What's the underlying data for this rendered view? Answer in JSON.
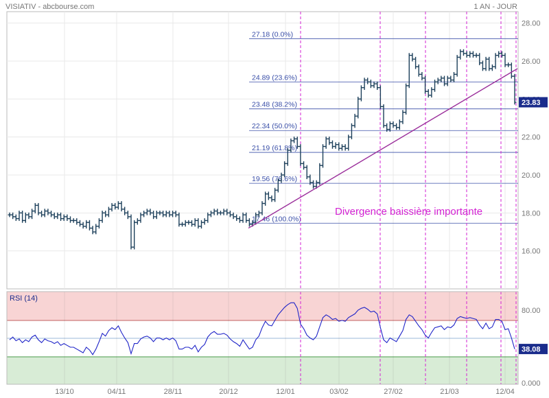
{
  "header": {
    "title": "VISIATIV - abcbourse.com",
    "period": "1 AN - JOUR"
  },
  "colors": {
    "candles": "#1c3f5a",
    "fib_lines": "#3a4fa8",
    "annotation": "#d322d3",
    "trendline": "#9a2d9a",
    "rsi_line": "#1f24c8",
    "rsi_overbought_zone": "#f8d4d4",
    "rsi_oversold_zone": "#d8ecd6",
    "last_price_bg": "#1a2c8c"
  },
  "chart_data": [
    {
      "type": "candlestick",
      "title": "",
      "ylim": [
        14.0,
        28.6
      ],
      "y_ticks": [
        "16.00",
        "18.00",
        "20.00",
        "22.00",
        "24.00",
        "26.00",
        "28.00"
      ],
      "x_ticks": [
        "13/10",
        "04/11",
        "28/11",
        "20/12",
        "12/01",
        "03/02",
        "27/02",
        "21/03",
        "12/04"
      ],
      "last_price": "23.83",
      "close_series": [
        17.9,
        17.8,
        17.7,
        18.0,
        17.6,
        17.9,
        17.8,
        18.1,
        18.4,
        18.0,
        17.9,
        18.1,
        18.0,
        17.9,
        17.8,
        17.9,
        17.7,
        17.8,
        17.7,
        17.6,
        17.6,
        17.5,
        17.4,
        17.3,
        17.5,
        17.2,
        17.0,
        17.3,
        17.6,
        18.0,
        17.9,
        18.2,
        18.4,
        18.3,
        18.5,
        18.2,
        18.0,
        17.8,
        16.2,
        17.5,
        17.6,
        17.9,
        18.0,
        18.1,
        18.0,
        17.8,
        18.0,
        18.0,
        17.9,
        18.0,
        17.9,
        18.0,
        17.9,
        17.4,
        17.4,
        17.5,
        17.5,
        17.4,
        17.6,
        17.3,
        17.5,
        17.6,
        17.9,
        18.0,
        18.1,
        18.0,
        18.0,
        18.1,
        18.0,
        17.9,
        17.8,
        17.7,
        17.6,
        17.9,
        17.6,
        17.4,
        17.5,
        17.9,
        18.0,
        18.5,
        19.0,
        18.8,
        18.7,
        19.2,
        19.7,
        20.0,
        20.6,
        21.3,
        21.8,
        21.9,
        21.5,
        20.6,
        20.4,
        19.9,
        19.6,
        19.4,
        19.6,
        20.5,
        21.5,
        21.9,
        21.7,
        21.5,
        21.6,
        21.4,
        21.5,
        21.4,
        22.0,
        22.6,
        23.1,
        24.0,
        24.6,
        25.0,
        24.9,
        24.7,
        24.8,
        24.6,
        23.6,
        22.6,
        22.4,
        22.7,
        22.6,
        22.5,
        22.8,
        23.3,
        24.7,
        26.3,
        26.1,
        25.7,
        25.3,
        25.1,
        24.4,
        24.2,
        24.5,
        24.9,
        25.0,
        25.1,
        24.8,
        25.1,
        25.0,
        25.3,
        26.2,
        26.5,
        26.4,
        26.3,
        26.4,
        26.3,
        26.3,
        25.9,
        25.6,
        26.1,
        25.6,
        25.7,
        26.3,
        26.4,
        26.3,
        25.8,
        25.8,
        25.2,
        23.83
      ],
      "fibonacci_levels": [
        {
          "price": 27.18,
          "label": "27.18  (0.0%)"
        },
        {
          "price": 24.89,
          "label": "24.89  (23.6%)"
        },
        {
          "price": 23.48,
          "label": "23.48  (38.2%)"
        },
        {
          "price": 22.34,
          "label": "22.34  (50.0%)"
        },
        {
          "price": 21.19,
          "label": "21.19  (61.8%)"
        },
        {
          "price": 19.56,
          "label": "19.56  (78.6%)"
        },
        {
          "price": 17.46,
          "label": "17.46  (100.0%)"
        }
      ],
      "trendline": {
        "from": 17.2,
        "to": 25.6
      },
      "annotation": "Divergence baissière importante"
    },
    {
      "type": "line",
      "title": "RSI (14)",
      "ylim": [
        0,
        100
      ],
      "y_ticks": [
        "0.000",
        "80.00"
      ],
      "overbought": 70,
      "oversold": 30,
      "last_value": "38.08",
      "values": [
        48,
        51,
        47,
        49,
        45,
        48,
        46,
        51,
        53,
        48,
        45,
        49,
        47,
        46,
        44,
        46,
        42,
        44,
        42,
        40,
        40,
        38,
        36,
        34,
        40,
        37,
        32,
        38,
        46,
        55,
        52,
        58,
        61,
        59,
        63,
        56,
        50,
        45,
        33,
        44,
        44,
        49,
        51,
        52,
        50,
        46,
        50,
        50,
        48,
        50,
        48,
        50,
        47,
        38,
        38,
        40,
        40,
        38,
        42,
        35,
        40,
        43,
        51,
        55,
        57,
        54,
        54,
        55,
        53,
        49,
        46,
        44,
        41,
        48,
        43,
        38,
        40,
        48,
        52,
        61,
        68,
        64,
        63,
        69,
        75,
        79,
        83,
        86,
        88,
        88,
        82,
        65,
        60,
        53,
        50,
        48,
        52,
        62,
        72,
        75,
        73,
        70,
        71,
        68,
        69,
        68,
        72,
        74,
        76,
        80,
        82,
        83,
        81,
        78,
        79,
        76,
        61,
        48,
        45,
        50,
        48,
        46,
        52,
        58,
        70,
        75,
        73,
        68,
        63,
        59,
        53,
        50,
        56,
        61,
        62,
        63,
        59,
        62,
        61,
        64,
        71,
        73,
        72,
        71,
        72,
        71,
        70,
        64,
        60,
        66,
        60,
        62,
        70,
        70,
        68,
        59,
        60,
        50,
        38
      ]
    }
  ]
}
